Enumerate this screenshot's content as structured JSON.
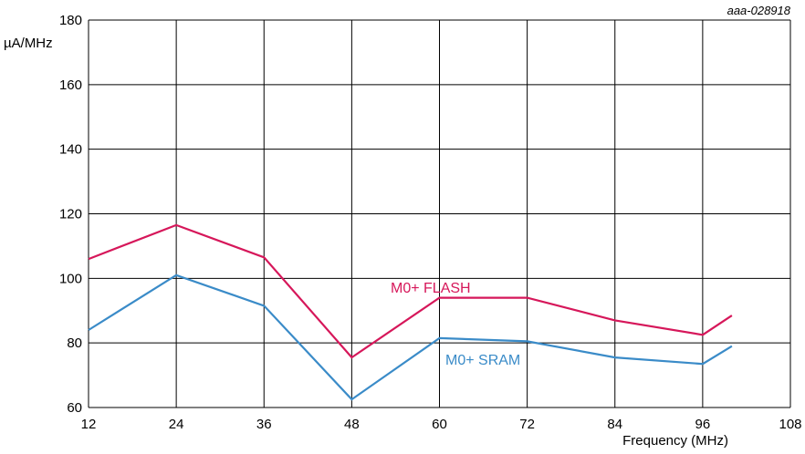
{
  "chart_data": {
    "type": "line",
    "reference_code": "aaa-028918",
    "ylabel": "µA/MHz",
    "xlabel": "Frequency (MHz)",
    "xlim": [
      12,
      108
    ],
    "ylim": [
      60,
      180
    ],
    "x_ticks": [
      12,
      24,
      36,
      48,
      60,
      72,
      84,
      96,
      108
    ],
    "y_ticks": [
      60,
      80,
      100,
      120,
      140,
      160,
      180
    ],
    "grid": true,
    "series": [
      {
        "name": "M0+ FLASH",
        "color": "#d6175a",
        "x": [
          12,
          24,
          36,
          48,
          60,
          72,
          84,
          96,
          100
        ],
        "y": [
          106,
          116.5,
          106.5,
          75.5,
          94,
          94,
          87,
          82.5,
          88.5
        ]
      },
      {
        "name": "M0+ SRAM",
        "color": "#3a8bc8",
        "x": [
          12,
          24,
          36,
          48,
          60,
          72,
          84,
          96,
          100
        ],
        "y": [
          84,
          101,
          91.5,
          62.5,
          81.5,
          80.5,
          75.5,
          73.5,
          79
        ]
      }
    ]
  }
}
